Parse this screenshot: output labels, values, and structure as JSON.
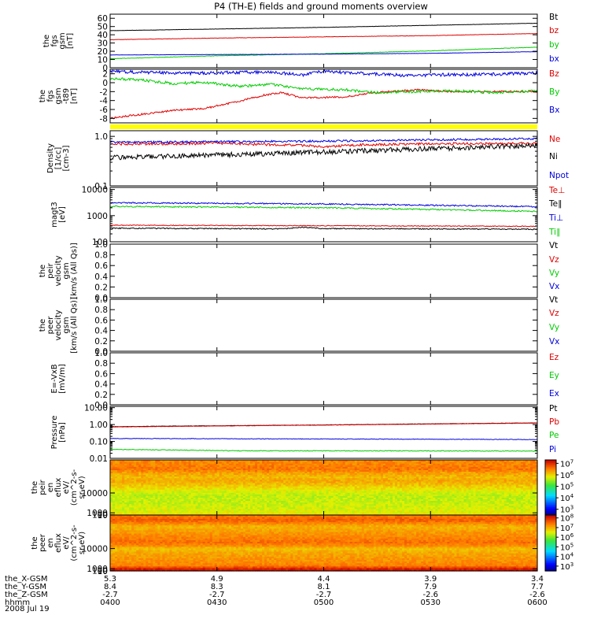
{
  "title": "P4 (TH-E) fields and ground moments overview",
  "date": "2008 Jul 19",
  "chart_data": [
    {
      "id": "bfield_gsm",
      "type": "line",
      "ylabel": [
        "the",
        "fgs",
        "gsm",
        "[nT]"
      ],
      "ylim": [
        0,
        65
      ],
      "ticks": [
        [
          "0",
          0
        ],
        [
          "10",
          10
        ],
        [
          "20",
          20
        ],
        [
          "30",
          30
        ],
        [
          "40",
          40
        ],
        [
          "50",
          50
        ],
        [
          "60",
          60
        ]
      ],
      "series": [
        {
          "name": "Bt",
          "color": "#000000",
          "x": [
            0,
            0.25,
            0.5,
            0.75,
            1
          ],
          "y": [
            45,
            47,
            49,
            51.5,
            54
          ],
          "noise": 0.15
        },
        {
          "name": "bz",
          "color": "#e00000",
          "x": [
            0,
            0.25,
            0.5,
            0.75,
            1
          ],
          "y": [
            34,
            36,
            37.5,
            39,
            41.5
          ],
          "noise": 0.2
        },
        {
          "name": "by",
          "color": "#00cc00",
          "x": [
            0,
            0.25,
            0.5,
            0.75,
            1
          ],
          "y": [
            11,
            14.5,
            17,
            20.5,
            25
          ],
          "noise": 0.25
        },
        {
          "name": "bx",
          "color": "#0000dd",
          "x": [
            0,
            0.25,
            0.5,
            0.75,
            1
          ],
          "y": [
            15.5,
            16,
            16.5,
            17.5,
            19.5
          ],
          "noise": 0.15
        }
      ]
    },
    {
      "id": "bfield_detrended",
      "type": "line",
      "ylabel": [
        "the",
        "fgs",
        "gsm",
        "-t89",
        "[nT]"
      ],
      "ylim": [
        -9,
        3
      ],
      "ticks": [
        [
          "-8",
          -8
        ],
        [
          "-6",
          -6
        ],
        [
          "-4",
          -4
        ],
        [
          "-2",
          -2
        ],
        [
          "0",
          0
        ],
        [
          "2",
          2
        ]
      ],
      "series": [
        {
          "name": "Bz",
          "color": "#e00000",
          "x": [
            0,
            0.08,
            0.15,
            0.22,
            0.3,
            0.36,
            0.4,
            0.45,
            0.55,
            0.62,
            0.72,
            0.8,
            0.9,
            1
          ],
          "y": [
            -8,
            -7,
            -6.2,
            -5.8,
            -4.2,
            -2.8,
            -2.2,
            -3.4,
            -3.2,
            -2.2,
            -1.6,
            -2,
            -2,
            -2
          ],
          "noise": 0.2
        },
        {
          "name": "By",
          "color": "#00cc00",
          "x": [
            0,
            0.08,
            0.15,
            0.22,
            0.3,
            0.38,
            0.45,
            0.55,
            0.62,
            0.72,
            0.8,
            0.9,
            1
          ],
          "y": [
            1,
            0.5,
            -0.2,
            0.1,
            -0.8,
            -0.4,
            -1.4,
            -1.6,
            -2.2,
            -2,
            -1.8,
            -2.2,
            -1.8
          ],
          "noise": 0.3
        },
        {
          "name": "Bx",
          "color": "#0000dd",
          "x": [
            0,
            0.2,
            0.3,
            0.38,
            0.45,
            0.5,
            0.6,
            0.7,
            0.8,
            0.9,
            1
          ],
          "y": [
            2.5,
            2.1,
            2.3,
            2.4,
            1.7,
            2.6,
            2.0,
            1.6,
            1.8,
            1.9,
            2.2
          ],
          "noise": 0.35
        }
      ]
    },
    {
      "id": "density",
      "type": "line",
      "log": true,
      "ylabel": [
        "Density",
        "[1/cc]",
        "[cm-3]"
      ],
      "ylim": [
        0.1,
        1.3
      ],
      "ticks": [
        [
          "0.1",
          0.1
        ],
        [
          "1.0",
          1.0
        ]
      ],
      "series": [
        {
          "name": "Ne",
          "color": "#e00000",
          "x": [
            0,
            0.25,
            0.45,
            0.5,
            0.6,
            0.75,
            1
          ],
          "y": [
            0.7,
            0.72,
            0.66,
            0.62,
            0.68,
            0.71,
            0.72
          ],
          "noise": 0.05
        },
        {
          "name": "Ni",
          "color": "#000000",
          "x": [
            0,
            0.25,
            0.5,
            0.75,
            1
          ],
          "y": [
            0.37,
            0.42,
            0.48,
            0.56,
            0.65
          ],
          "noise": 0.1
        },
        {
          "name": "Npot",
          "color": "#0000dd",
          "x": [
            0,
            0.25,
            0.5,
            0.75,
            1
          ],
          "y": [
            0.76,
            0.78,
            0.8,
            0.85,
            0.9
          ],
          "noise": 0.04
        }
      ]
    },
    {
      "id": "temperature",
      "type": "line",
      "log": true,
      "ylabel": [
        "magt3",
        "[eV]"
      ],
      "ylim": [
        100,
        12000
      ],
      "ticks": [
        [
          "100",
          100
        ],
        [
          "1000",
          1000
        ],
        [
          "10000",
          10000
        ]
      ],
      "series": [
        {
          "name": "Te⊥",
          "color": "#e00000",
          "x": [
            0,
            1
          ],
          "y": [
            430,
            390
          ],
          "noise": 0.03
        },
        {
          "name": "Te∥",
          "color": "#000000",
          "x": [
            0,
            0.4,
            0.45,
            0.5,
            1
          ],
          "y": [
            330,
            310,
            360,
            320,
            300
          ],
          "noise": 0.04
        },
        {
          "name": "Ti⊥",
          "color": "#0000dd",
          "x": [
            0,
            0.5,
            1
          ],
          "y": [
            3100,
            2800,
            2200
          ],
          "noise": 0.05
        },
        {
          "name": "Ti∥",
          "color": "#00cc00",
          "x": [
            0,
            0.5,
            1
          ],
          "y": [
            2250,
            2000,
            1450
          ],
          "noise": 0.05
        }
      ]
    },
    {
      "id": "peir_velocity",
      "type": "line",
      "ylabel": [
        "the",
        "peir",
        "velocity",
        "gsm",
        "[km/s (All Qs)]"
      ],
      "ylim": [
        0,
        1
      ],
      "ticks": [
        [
          "0.0",
          0
        ],
        [
          "0.2",
          0.2
        ],
        [
          "0.4",
          0.4
        ],
        [
          "0.6",
          0.6
        ],
        [
          "0.8",
          0.8
        ],
        [
          "1.0",
          1.0
        ]
      ],
      "series": [
        {
          "name": "Vt",
          "color": "#000000"
        },
        {
          "name": "Vz",
          "color": "#e00000"
        },
        {
          "name": "Vy",
          "color": "#00cc00"
        },
        {
          "name": "Vx",
          "color": "#0000dd"
        }
      ]
    },
    {
      "id": "peer_velocity",
      "type": "line",
      "ylabel": [
        "the",
        "peer",
        "velocity",
        "gsm",
        "[km/s (All Qs)]"
      ],
      "ylim": [
        0,
        1
      ],
      "ticks": [
        [
          "0.0",
          0
        ],
        [
          "0.2",
          0.2
        ],
        [
          "0.4",
          0.4
        ],
        [
          "0.6",
          0.6
        ],
        [
          "0.8",
          0.8
        ],
        [
          "1.0",
          1.0
        ]
      ],
      "series": [
        {
          "name": "Vt",
          "color": "#000000"
        },
        {
          "name": "Vz",
          "color": "#e00000"
        },
        {
          "name": "Vy",
          "color": "#00cc00"
        },
        {
          "name": "Vx",
          "color": "#0000dd"
        }
      ]
    },
    {
      "id": "efield",
      "type": "line",
      "ylabel": [
        "E=-VxB",
        "[mV/m]"
      ],
      "ylim": [
        0,
        1
      ],
      "ticks": [
        [
          "0.0",
          0
        ],
        [
          "0.2",
          0.2
        ],
        [
          "0.4",
          0.4
        ],
        [
          "0.6",
          0.6
        ],
        [
          "0.8",
          0.8
        ],
        [
          "1.0",
          1.0
        ]
      ],
      "series": [
        {
          "name": "Ez",
          "color": "#e00000"
        },
        {
          "name": "Ey",
          "color": "#00cc00"
        },
        {
          "name": "Ex",
          "color": "#0000dd"
        }
      ]
    },
    {
      "id": "pressure",
      "type": "line",
      "log": true,
      "ylabel": [
        "Pressure",
        "[nPa]"
      ],
      "ylim": [
        0.01,
        12
      ],
      "ticks": [
        [
          "0.01",
          0.01
        ],
        [
          "0.10",
          0.1
        ],
        [
          "1.00",
          1.0
        ],
        [
          "10.00",
          10.0
        ]
      ],
      "series": [
        {
          "name": "Pt",
          "color": "#000000",
          "x": [
            0,
            0.5,
            1
          ],
          "y": [
            0.75,
            0.95,
            1.25
          ],
          "noise": 0.02
        },
        {
          "name": "Pb",
          "color": "#e00000",
          "x": [
            0,
            0.5,
            1
          ],
          "y": [
            0.72,
            0.93,
            1.22
          ],
          "noise": 0.02
        },
        {
          "name": "Pe",
          "color": "#00cc00",
          "x": [
            0,
            0.3,
            0.5,
            1
          ],
          "y": [
            0.034,
            0.028,
            0.028,
            0.027
          ],
          "noise": 0.04
        },
        {
          "name": "Pi",
          "color": "#0000dd",
          "x": [
            0,
            0.5,
            1
          ],
          "y": [
            0.15,
            0.14,
            0.13
          ],
          "noise": 0.03
        }
      ]
    },
    {
      "id": "peir_spectrogram",
      "type": "heatmap",
      "ylabel": [
        "the",
        "peir",
        "en",
        "eflux",
        "eV/",
        "(cm^2-s-",
        "sr-eV)"
      ],
      "ylim": [
        7,
        25000
      ],
      "ticks": [
        [
          "10",
          10
        ],
        [
          "100",
          100
        ],
        [
          "1000",
          1000
        ],
        [
          "10000",
          10000
        ]
      ],
      "colorbar": [
        [
          "10^3",
          3
        ],
        [
          "10^4",
          4
        ],
        [
          "10^5",
          5
        ],
        [
          "10^6",
          6
        ],
        [
          "10^7",
          7
        ]
      ],
      "clim": [
        2.5,
        7.3
      ],
      "energy_profile": [
        [
          7,
          5.9
        ],
        [
          15,
          5.8
        ],
        [
          60,
          5.7
        ],
        [
          150,
          5.7
        ],
        [
          250,
          5.8
        ],
        [
          400,
          6.0
        ],
        [
          800,
          6.2
        ],
        [
          1200,
          6.3
        ],
        [
          2000,
          6.2
        ],
        [
          3500,
          6.3
        ],
        [
          5000,
          6.5
        ],
        [
          7000,
          6.6
        ],
        [
          10000,
          6.55
        ],
        [
          14000,
          6.5
        ],
        [
          25000,
          6.5
        ]
      ]
    },
    {
      "id": "peer_spectrogram",
      "type": "heatmap",
      "ylabel": [
        "the",
        "peer",
        "en",
        "eflux",
        "eV/",
        "(cm^2-s-",
        "sr-eV)"
      ],
      "ylim": [
        7,
        25000
      ],
      "ticks": [
        [
          "10",
          10
        ],
        [
          "100",
          100
        ],
        [
          "1000",
          1000
        ],
        [
          "10000",
          10000
        ]
      ],
      "colorbar": [
        [
          "10^3",
          3
        ],
        [
          "10^4",
          4
        ],
        [
          "10^5",
          5
        ],
        [
          "10^6",
          6
        ],
        [
          "10^7",
          7
        ],
        [
          "10^8",
          8
        ]
      ],
      "clim": [
        2.5,
        8.3
      ],
      "energy_profile": [
        [
          7,
          8.2
        ],
        [
          10,
          8.1
        ],
        [
          13,
          7.7
        ],
        [
          16,
          7.4
        ],
        [
          22,
          7.3
        ],
        [
          50,
          7.2
        ],
        [
          100,
          7.1
        ],
        [
          200,
          6.9
        ],
        [
          300,
          7.3
        ],
        [
          500,
          7.5
        ],
        [
          1000,
          7.35
        ],
        [
          2000,
          7.2
        ],
        [
          5000,
          7.0
        ],
        [
          10000,
          7.5
        ],
        [
          14000,
          7.6
        ],
        [
          25000,
          7.4
        ]
      ]
    }
  ],
  "xaxis": {
    "ticks": [
      "0400",
      "0430",
      "0500",
      "0530",
      "0600"
    ],
    "rows": [
      {
        "label": "the_X-GSM",
        "values": [
          "5.3",
          "4.9",
          "4.4",
          "3.9",
          "3.4"
        ]
      },
      {
        "label": "the_Y-GSM",
        "values": [
          "8.4",
          "8.3",
          "8.1",
          "7.9",
          "7.7"
        ]
      },
      {
        "label": "the_Z-GSM",
        "values": [
          "-2.7",
          "-2.7",
          "-2.7",
          "-2.6",
          "-2.6"
        ]
      },
      {
        "label": "hhmm",
        "values": [
          "0400",
          "0430",
          "0500",
          "0530",
          "0600"
        ]
      }
    ]
  }
}
